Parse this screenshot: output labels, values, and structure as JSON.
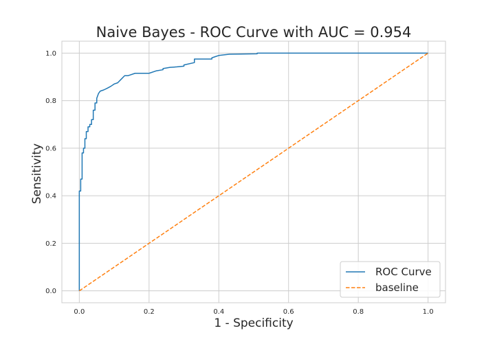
{
  "chart_data": {
    "type": "line",
    "title": "Naive Bayes - ROC Curve with AUC = 0.954",
    "xlabel": "1 - Specificity",
    "ylabel": "Sensitivity",
    "xlim": [
      -0.05,
      1.05
    ],
    "ylim": [
      -0.05,
      1.05
    ],
    "grid": true,
    "legend_position": "lower-right",
    "x_ticks": [
      "0.0",
      "0.2",
      "0.4",
      "0.6",
      "0.8",
      "1.0"
    ],
    "y_ticks": [
      "0.0",
      "0.2",
      "0.4",
      "0.6",
      "0.8",
      "1.0"
    ],
    "series": [
      {
        "name": "ROC Curve",
        "color": "#1f77b4",
        "style": "solid",
        "x": [
          0,
          0,
          0.004,
          0.004,
          0.008,
          0.008,
          0.012,
          0.012,
          0.016,
          0.016,
          0.02,
          0.02,
          0.025,
          0.025,
          0.03,
          0.03,
          0.035,
          0.035,
          0.04,
          0.04,
          0.045,
          0.045,
          0.05,
          0.05,
          0.055,
          0.06,
          0.07,
          0.08,
          0.09,
          0.1,
          0.11,
          0.12,
          0.13,
          0.14,
          0.16,
          0.2,
          0.22,
          0.24,
          0.24,
          0.26,
          0.28,
          0.3,
          0.3,
          0.33,
          0.33,
          0.38,
          0.38,
          0.39,
          0.4,
          0.4,
          0.43,
          0.43,
          0.51,
          0.51,
          1.0
        ],
        "y": [
          0,
          0.42,
          0.42,
          0.47,
          0.47,
          0.58,
          0.58,
          0.6,
          0.6,
          0.64,
          0.64,
          0.67,
          0.67,
          0.69,
          0.69,
          0.7,
          0.7,
          0.72,
          0.72,
          0.76,
          0.76,
          0.79,
          0.79,
          0.81,
          0.83,
          0.84,
          0.845,
          0.852,
          0.86,
          0.87,
          0.875,
          0.89,
          0.905,
          0.905,
          0.915,
          0.915,
          0.925,
          0.93,
          0.935,
          0.94,
          0.942,
          0.945,
          0.95,
          0.96,
          0.975,
          0.975,
          0.98,
          0.985,
          0.99,
          0.99,
          0.995,
          0.995,
          0.997,
          1.0,
          1.0
        ]
      },
      {
        "name": "baseline",
        "color": "#ff7f0e",
        "style": "dashed",
        "x": [
          0,
          1
        ],
        "y": [
          0,
          1
        ]
      }
    ]
  }
}
